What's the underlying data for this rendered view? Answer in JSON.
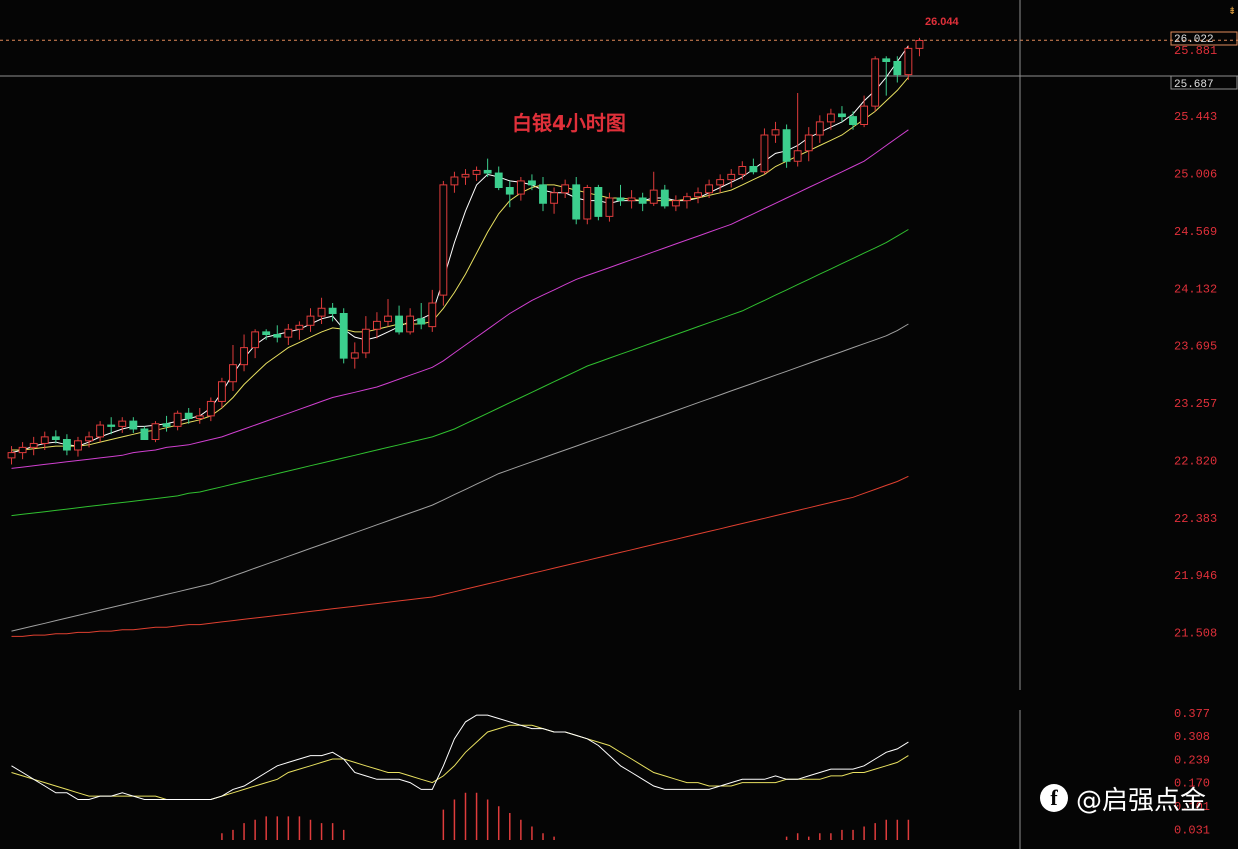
{
  "chart_data": {
    "type": "candlestick",
    "title": "白银4小时图",
    "price_axis_ticks": [
      "25.443",
      "25.006",
      "24.569",
      "24.132",
      "23.695",
      "23.257",
      "22.820",
      "22.383",
      "21.946",
      "21.508"
    ],
    "price_axis_range": [
      21.3,
      26.1
    ],
    "last_price_label": "26.022",
    "high_marker_label": "26.044",
    "crosshair_label": "25.687",
    "prev_level_label": "25.881",
    "ma_colors": {
      "ma5": "#ffffff",
      "ma10": "#e8e060",
      "ma30": "#d040d0",
      "ma60": "#30c030",
      "ma120": "#a0a0a0",
      "ma250": "#e04030"
    },
    "candles": [
      {
        "o": 22.84,
        "h": 22.93,
        "l": 22.79,
        "c": 22.88
      },
      {
        "o": 22.88,
        "h": 22.96,
        "l": 22.83,
        "c": 22.92
      },
      {
        "o": 22.92,
        "h": 23.0,
        "l": 22.86,
        "c": 22.95
      },
      {
        "o": 22.95,
        "h": 23.04,
        "l": 22.9,
        "c": 23.0
      },
      {
        "o": 23.0,
        "h": 23.05,
        "l": 22.95,
        "c": 22.98
      },
      {
        "o": 22.98,
        "h": 23.02,
        "l": 22.86,
        "c": 22.9
      },
      {
        "o": 22.9,
        "h": 23.0,
        "l": 22.85,
        "c": 22.97
      },
      {
        "o": 22.97,
        "h": 23.04,
        "l": 22.92,
        "c": 23.0
      },
      {
        "o": 23.0,
        "h": 23.12,
        "l": 22.96,
        "c": 23.09
      },
      {
        "o": 23.09,
        "h": 23.15,
        "l": 23.02,
        "c": 23.08
      },
      {
        "o": 23.08,
        "h": 23.15,
        "l": 23.03,
        "c": 23.12
      },
      {
        "o": 23.12,
        "h": 23.15,
        "l": 23.03,
        "c": 23.06
      },
      {
        "o": 23.06,
        "h": 23.08,
        "l": 23.0,
        "c": 22.98
      },
      {
        "o": 22.98,
        "h": 23.12,
        "l": 22.96,
        "c": 23.1
      },
      {
        "o": 23.1,
        "h": 23.16,
        "l": 23.04,
        "c": 23.08
      },
      {
        "o": 23.08,
        "h": 23.2,
        "l": 23.05,
        "c": 23.18
      },
      {
        "o": 23.18,
        "h": 23.22,
        "l": 23.1,
        "c": 23.14
      },
      {
        "o": 23.14,
        "h": 23.22,
        "l": 23.1,
        "c": 23.16
      },
      {
        "o": 23.16,
        "h": 23.3,
        "l": 23.12,
        "c": 23.27
      },
      {
        "o": 23.27,
        "h": 23.45,
        "l": 23.22,
        "c": 23.42
      },
      {
        "o": 23.42,
        "h": 23.7,
        "l": 23.35,
        "c": 23.55
      },
      {
        "o": 23.55,
        "h": 23.78,
        "l": 23.5,
        "c": 23.68
      },
      {
        "o": 23.68,
        "h": 23.82,
        "l": 23.6,
        "c": 23.8
      },
      {
        "o": 23.8,
        "h": 23.82,
        "l": 23.74,
        "c": 23.78
      },
      {
        "o": 23.78,
        "h": 23.85,
        "l": 23.72,
        "c": 23.76
      },
      {
        "o": 23.76,
        "h": 23.86,
        "l": 23.7,
        "c": 23.82
      },
      {
        "o": 23.82,
        "h": 23.88,
        "l": 23.74,
        "c": 23.85
      },
      {
        "o": 23.85,
        "h": 23.98,
        "l": 23.8,
        "c": 23.92
      },
      {
        "o": 23.92,
        "h": 24.06,
        "l": 23.86,
        "c": 23.98
      },
      {
        "o": 23.98,
        "h": 24.02,
        "l": 23.88,
        "c": 23.94
      },
      {
        "o": 23.94,
        "h": 23.98,
        "l": 23.56,
        "c": 23.6
      },
      {
        "o": 23.6,
        "h": 23.72,
        "l": 23.52,
        "c": 23.64
      },
      {
        "o": 23.64,
        "h": 23.92,
        "l": 23.6,
        "c": 23.82
      },
      {
        "o": 23.82,
        "h": 23.95,
        "l": 23.75,
        "c": 23.88
      },
      {
        "o": 23.88,
        "h": 24.05,
        "l": 23.84,
        "c": 23.92
      },
      {
        "o": 23.92,
        "h": 24.0,
        "l": 23.78,
        "c": 23.8
      },
      {
        "o": 23.8,
        "h": 23.98,
        "l": 23.78,
        "c": 23.92
      },
      {
        "o": 23.9,
        "h": 24.02,
        "l": 23.82,
        "c": 23.86
      },
      {
        "o": 23.84,
        "h": 24.12,
        "l": 23.8,
        "c": 24.02
      },
      {
        "o": 24.08,
        "h": 24.95,
        "l": 24.0,
        "c": 24.92
      },
      {
        "o": 24.92,
        "h": 25.02,
        "l": 24.86,
        "c": 24.98
      },
      {
        "o": 24.98,
        "h": 25.04,
        "l": 24.92,
        "c": 25.0
      },
      {
        "o": 25.0,
        "h": 25.06,
        "l": 24.95,
        "c": 25.03
      },
      {
        "o": 25.03,
        "h": 25.12,
        "l": 24.98,
        "c": 25.01
      },
      {
        "o": 25.01,
        "h": 25.06,
        "l": 24.88,
        "c": 24.9
      },
      {
        "o": 24.9,
        "h": 24.95,
        "l": 24.75,
        "c": 24.85
      },
      {
        "o": 24.85,
        "h": 24.98,
        "l": 24.8,
        "c": 24.95
      },
      {
        "o": 24.95,
        "h": 25.0,
        "l": 24.88,
        "c": 24.92
      },
      {
        "o": 24.92,
        "h": 24.98,
        "l": 24.72,
        "c": 24.78
      },
      {
        "o": 24.78,
        "h": 24.9,
        "l": 24.7,
        "c": 24.86
      },
      {
        "o": 24.86,
        "h": 24.96,
        "l": 24.82,
        "c": 24.92
      },
      {
        "o": 24.92,
        "h": 24.98,
        "l": 24.62,
        "c": 24.66
      },
      {
        "o": 24.66,
        "h": 24.92,
        "l": 24.62,
        "c": 24.9
      },
      {
        "o": 24.9,
        "h": 24.92,
        "l": 24.65,
        "c": 24.68
      },
      {
        "o": 24.68,
        "h": 24.86,
        "l": 24.64,
        "c": 24.82
      },
      {
        "o": 24.82,
        "h": 24.92,
        "l": 24.76,
        "c": 24.8
      },
      {
        "o": 24.8,
        "h": 24.88,
        "l": 24.74,
        "c": 24.82
      },
      {
        "o": 24.82,
        "h": 24.86,
        "l": 24.72,
        "c": 24.78
      },
      {
        "o": 24.78,
        "h": 25.02,
        "l": 24.76,
        "c": 24.88
      },
      {
        "o": 24.88,
        "h": 24.92,
        "l": 24.74,
        "c": 24.76
      },
      {
        "o": 24.76,
        "h": 24.84,
        "l": 24.72,
        "c": 24.8
      },
      {
        "o": 24.8,
        "h": 24.86,
        "l": 24.74,
        "c": 24.83
      },
      {
        "o": 24.83,
        "h": 24.9,
        "l": 24.78,
        "c": 24.86
      },
      {
        "o": 24.86,
        "h": 24.96,
        "l": 24.82,
        "c": 24.92
      },
      {
        "o": 24.92,
        "h": 25.0,
        "l": 24.86,
        "c": 24.96
      },
      {
        "o": 24.96,
        "h": 25.04,
        "l": 24.9,
        "c": 25.0
      },
      {
        "o": 25.0,
        "h": 25.1,
        "l": 24.96,
        "c": 25.06
      },
      {
        "o": 25.06,
        "h": 25.12,
        "l": 25.0,
        "c": 25.02
      },
      {
        "o": 25.02,
        "h": 25.35,
        "l": 25.0,
        "c": 25.3
      },
      {
        "o": 25.3,
        "h": 25.4,
        "l": 25.24,
        "c": 25.34
      },
      {
        "o": 25.34,
        "h": 25.38,
        "l": 25.05,
        "c": 25.1
      },
      {
        "o": 25.1,
        "h": 25.62,
        "l": 25.06,
        "c": 25.18
      },
      {
        "o": 25.18,
        "h": 25.36,
        "l": 25.1,
        "c": 25.3
      },
      {
        "o": 25.3,
        "h": 25.45,
        "l": 25.24,
        "c": 25.4
      },
      {
        "o": 25.4,
        "h": 25.5,
        "l": 25.34,
        "c": 25.46
      },
      {
        "o": 25.46,
        "h": 25.52,
        "l": 25.4,
        "c": 25.44
      },
      {
        "o": 25.44,
        "h": 25.48,
        "l": 25.34,
        "c": 25.38
      },
      {
        "o": 25.38,
        "h": 25.6,
        "l": 25.36,
        "c": 25.52
      },
      {
        "o": 25.52,
        "h": 25.9,
        "l": 25.48,
        "c": 25.88
      },
      {
        "o": 25.88,
        "h": 25.9,
        "l": 25.6,
        "c": 25.86
      },
      {
        "o": 25.86,
        "h": 25.9,
        "l": 25.7,
        "c": 25.76
      },
      {
        "o": 25.76,
        "h": 25.98,
        "l": 25.72,
        "c": 25.96
      },
      {
        "o": 25.96,
        "h": 26.04,
        "l": 25.9,
        "c": 26.02
      }
    ],
    "ma_series": {
      "ma5": [
        22.88,
        22.9,
        22.93,
        22.95,
        22.96,
        22.94,
        22.93,
        22.96,
        23.0,
        23.03,
        23.06,
        23.08,
        23.08,
        23.09,
        23.1,
        23.12,
        23.14,
        23.16,
        23.22,
        23.34,
        23.48,
        23.6,
        23.7,
        23.76,
        23.78,
        23.8,
        23.82,
        23.86,
        23.9,
        23.92,
        23.82,
        23.76,
        23.74,
        23.76,
        23.8,
        23.84,
        23.88,
        23.9,
        23.94,
        24.2,
        24.48,
        24.72,
        24.92,
        25.0,
        24.98,
        24.95,
        24.94,
        24.92,
        24.88,
        24.86,
        24.86,
        24.82,
        24.8,
        24.8,
        24.78,
        24.8,
        24.8,
        24.8,
        24.82,
        24.82,
        24.8,
        24.8,
        24.82,
        24.86,
        24.9,
        24.94,
        24.98,
        25.04,
        25.1,
        25.16,
        25.18,
        25.22,
        25.28,
        25.32,
        25.36,
        25.4,
        25.46,
        25.56,
        25.64,
        25.74,
        25.86,
        25.98
      ],
      "ma10": [
        22.9,
        22.9,
        22.91,
        22.92,
        22.93,
        22.93,
        22.93,
        22.94,
        22.96,
        22.98,
        23.0,
        23.02,
        23.04,
        23.05,
        23.07,
        23.09,
        23.11,
        23.13,
        23.16,
        23.22,
        23.3,
        23.4,
        23.48,
        23.56,
        23.62,
        23.68,
        23.72,
        23.76,
        23.8,
        23.83,
        23.82,
        23.8,
        23.8,
        23.82,
        23.84,
        23.86,
        23.86,
        23.86,
        23.88,
        23.98,
        24.1,
        24.24,
        24.4,
        24.56,
        24.7,
        24.8,
        24.86,
        24.9,
        24.92,
        24.92,
        24.9,
        24.88,
        24.86,
        24.84,
        24.82,
        24.82,
        24.81,
        24.8,
        24.8,
        24.8,
        24.8,
        24.81,
        24.82,
        24.84,
        24.86,
        24.88,
        24.92,
        24.96,
        25.0,
        25.06,
        25.1,
        25.14,
        25.18,
        25.22,
        25.26,
        25.3,
        25.36,
        25.42,
        25.48,
        25.56,
        25.64,
        25.74
      ],
      "ma30": [
        22.76,
        22.77,
        22.78,
        22.79,
        22.8,
        22.81,
        22.82,
        22.83,
        22.84,
        22.85,
        22.86,
        22.88,
        22.89,
        22.9,
        22.92,
        22.93,
        22.94,
        22.96,
        22.98,
        23.0,
        23.03,
        23.06,
        23.09,
        23.12,
        23.15,
        23.18,
        23.21,
        23.24,
        23.27,
        23.3,
        23.32,
        23.34,
        23.36,
        23.38,
        23.41,
        23.44,
        23.47,
        23.5,
        23.53,
        23.58,
        23.64,
        23.7,
        23.76,
        23.82,
        23.88,
        23.94,
        23.99,
        24.04,
        24.08,
        24.12,
        24.16,
        24.2,
        24.23,
        24.26,
        24.29,
        24.32,
        24.35,
        24.38,
        24.41,
        24.44,
        24.47,
        24.5,
        24.53,
        24.56,
        24.59,
        24.62,
        24.66,
        24.7,
        24.74,
        24.78,
        24.82,
        24.86,
        24.9,
        24.94,
        24.98,
        25.02,
        25.06,
        25.1,
        25.16,
        25.22,
        25.28,
        25.34
      ],
      "ma60": [
        22.4,
        22.41,
        22.42,
        22.43,
        22.44,
        22.45,
        22.46,
        22.47,
        22.48,
        22.49,
        22.5,
        22.51,
        22.52,
        22.53,
        22.54,
        22.55,
        22.57,
        22.58,
        22.6,
        22.62,
        22.64,
        22.66,
        22.68,
        22.7,
        22.72,
        22.74,
        22.76,
        22.78,
        22.8,
        22.82,
        22.84,
        22.86,
        22.88,
        22.9,
        22.92,
        22.94,
        22.96,
        22.98,
        23.0,
        23.03,
        23.06,
        23.1,
        23.14,
        23.18,
        23.22,
        23.26,
        23.3,
        23.34,
        23.38,
        23.42,
        23.46,
        23.5,
        23.54,
        23.57,
        23.6,
        23.63,
        23.66,
        23.69,
        23.72,
        23.75,
        23.78,
        23.81,
        23.84,
        23.87,
        23.9,
        23.93,
        23.96,
        24.0,
        24.04,
        24.08,
        24.12,
        24.16,
        24.2,
        24.24,
        24.28,
        24.32,
        24.36,
        24.4,
        24.44,
        24.48,
        24.53,
        24.58
      ],
      "ma120": [
        21.52,
        21.54,
        21.56,
        21.58,
        21.6,
        21.62,
        21.64,
        21.66,
        21.68,
        21.7,
        21.72,
        21.74,
        21.76,
        21.78,
        21.8,
        21.82,
        21.84,
        21.86,
        21.88,
        21.91,
        21.94,
        21.97,
        22.0,
        22.03,
        22.06,
        22.09,
        22.12,
        22.15,
        22.18,
        22.21,
        22.24,
        22.27,
        22.3,
        22.33,
        22.36,
        22.39,
        22.42,
        22.45,
        22.48,
        22.52,
        22.56,
        22.6,
        22.64,
        22.68,
        22.72,
        22.75,
        22.78,
        22.81,
        22.84,
        22.87,
        22.9,
        22.93,
        22.96,
        22.99,
        23.02,
        23.05,
        23.08,
        23.11,
        23.14,
        23.17,
        23.2,
        23.23,
        23.26,
        23.29,
        23.32,
        23.35,
        23.38,
        23.41,
        23.44,
        23.47,
        23.5,
        23.53,
        23.56,
        23.59,
        23.62,
        23.65,
        23.68,
        23.71,
        23.74,
        23.77,
        23.81,
        23.86
      ],
      "ma250": [
        21.48,
        21.48,
        21.49,
        21.49,
        21.5,
        21.5,
        21.51,
        21.51,
        21.52,
        21.52,
        21.53,
        21.53,
        21.54,
        21.55,
        21.55,
        21.56,
        21.57,
        21.57,
        21.58,
        21.59,
        21.6,
        21.61,
        21.62,
        21.63,
        21.64,
        21.65,
        21.66,
        21.67,
        21.68,
        21.69,
        21.7,
        21.71,
        21.72,
        21.73,
        21.74,
        21.75,
        21.76,
        21.77,
        21.78,
        21.8,
        21.82,
        21.84,
        21.86,
        21.88,
        21.9,
        21.92,
        21.94,
        21.96,
        21.98,
        22.0,
        22.02,
        22.04,
        22.06,
        22.08,
        22.1,
        22.12,
        22.14,
        22.16,
        22.18,
        22.2,
        22.22,
        22.24,
        22.26,
        22.28,
        22.3,
        22.32,
        22.34,
        22.36,
        22.38,
        22.4,
        22.42,
        22.44,
        22.46,
        22.48,
        22.5,
        22.52,
        22.54,
        22.57,
        22.6,
        22.63,
        22.66,
        22.7
      ]
    },
    "indicator": {
      "ticks": [
        "0.377",
        "0.308",
        "0.239",
        "0.170",
        "0.101",
        "0.031"
      ],
      "range": [
        0.0,
        0.4
      ],
      "fast": [
        0.22,
        0.2,
        0.18,
        0.16,
        0.14,
        0.14,
        0.12,
        0.12,
        0.13,
        0.13,
        0.14,
        0.13,
        0.12,
        0.12,
        0.12,
        0.12,
        0.12,
        0.12,
        0.12,
        0.13,
        0.15,
        0.16,
        0.18,
        0.2,
        0.22,
        0.23,
        0.24,
        0.25,
        0.25,
        0.26,
        0.24,
        0.2,
        0.19,
        0.18,
        0.18,
        0.18,
        0.17,
        0.15,
        0.15,
        0.22,
        0.3,
        0.35,
        0.37,
        0.37,
        0.36,
        0.35,
        0.34,
        0.33,
        0.33,
        0.32,
        0.32,
        0.31,
        0.3,
        0.28,
        0.25,
        0.22,
        0.2,
        0.18,
        0.16,
        0.15,
        0.15,
        0.15,
        0.15,
        0.15,
        0.16,
        0.17,
        0.18,
        0.18,
        0.18,
        0.19,
        0.18,
        0.18,
        0.19,
        0.2,
        0.21,
        0.21,
        0.21,
        0.22,
        0.24,
        0.26,
        0.27,
        0.29
      ],
      "slow": [
        0.2,
        0.19,
        0.18,
        0.17,
        0.16,
        0.15,
        0.14,
        0.13,
        0.13,
        0.13,
        0.13,
        0.13,
        0.13,
        0.13,
        0.12,
        0.12,
        0.12,
        0.12,
        0.12,
        0.13,
        0.14,
        0.15,
        0.16,
        0.17,
        0.18,
        0.2,
        0.21,
        0.22,
        0.23,
        0.24,
        0.24,
        0.23,
        0.22,
        0.21,
        0.2,
        0.2,
        0.19,
        0.18,
        0.17,
        0.19,
        0.22,
        0.26,
        0.29,
        0.32,
        0.33,
        0.34,
        0.34,
        0.34,
        0.33,
        0.32,
        0.32,
        0.31,
        0.3,
        0.29,
        0.28,
        0.26,
        0.24,
        0.22,
        0.2,
        0.19,
        0.18,
        0.17,
        0.17,
        0.16,
        0.16,
        0.16,
        0.17,
        0.17,
        0.17,
        0.17,
        0.18,
        0.18,
        0.18,
        0.18,
        0.19,
        0.19,
        0.2,
        0.2,
        0.21,
        0.22,
        0.23,
        0.25
      ],
      "hist": [
        0,
        0,
        0,
        0,
        0,
        0,
        0,
        0,
        0,
        0,
        0,
        0,
        0,
        0,
        0,
        0,
        0,
        0,
        0,
        0.02,
        0.03,
        0.05,
        0.06,
        0.07,
        0.07,
        0.07,
        0.07,
        0.06,
        0.05,
        0.05,
        0.03,
        0,
        0,
        0,
        0,
        0,
        0,
        0,
        0,
        0.09,
        0.12,
        0.14,
        0.14,
        0.12,
        0.1,
        0.08,
        0.06,
        0.04,
        0.02,
        0.01,
        0,
        0,
        0,
        0,
        0,
        0,
        0,
        0,
        0,
        0,
        0,
        0,
        0,
        0,
        0,
        0,
        0,
        0,
        0,
        0,
        0.01,
        0.02,
        0.01,
        0.02,
        0.02,
        0.03,
        0.03,
        0.04,
        0.05,
        0.06,
        0.06,
        0.06
      ]
    }
  },
  "watermark": {
    "icon": "facebook-f-icon",
    "text": "@启强点金"
  },
  "colors": {
    "up": "#e03c3c",
    "down": "#3ccf8e",
    "axis_text": "#e0303a",
    "background": "#050505"
  }
}
